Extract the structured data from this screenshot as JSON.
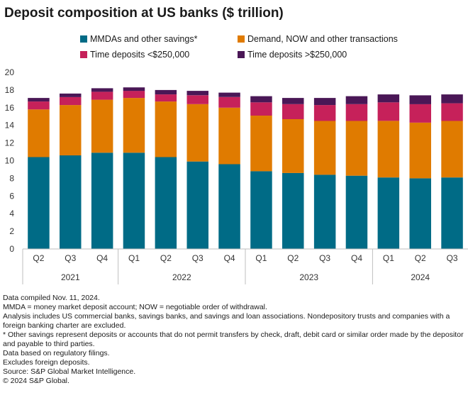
{
  "title": "Deposit composition at US banks ($ trillion)",
  "legend": [
    {
      "label": "MMDAs and other savings*",
      "color": "#006b86"
    },
    {
      "label": "Demand, NOW and other transactions",
      "color": "#e07b00"
    },
    {
      "label": "Time deposits <$250,000",
      "color": "#c6215a"
    },
    {
      "label": "Time deposits >$250,000",
      "color": "#4a1756"
    }
  ],
  "chart_data": {
    "type": "bar",
    "stacked": true,
    "title": "Deposit composition at US banks ($ trillion)",
    "categories": [
      "Q2",
      "Q3",
      "Q4",
      "Q1",
      "Q2",
      "Q3",
      "Q4",
      "Q1",
      "Q2",
      "Q3",
      "Q4",
      "Q1",
      "Q2",
      "Q3"
    ],
    "years": [
      {
        "label": "2021",
        "count": 3
      },
      {
        "label": "2022",
        "count": 4
      },
      {
        "label": "2023",
        "count": 4
      },
      {
        "label": "2024",
        "count": 3
      }
    ],
    "series": [
      {
        "name": "MMDAs and other savings*",
        "color": "#006b86",
        "values": [
          10.4,
          10.6,
          10.9,
          10.9,
          10.4,
          9.9,
          9.6,
          8.8,
          8.6,
          8.4,
          8.3,
          8.1,
          8.0,
          8.1
        ]
      },
      {
        "name": "Demand, NOW and other transactions",
        "color": "#e07b00",
        "values": [
          5.4,
          5.7,
          6.0,
          6.2,
          6.3,
          6.5,
          6.4,
          6.3,
          6.1,
          6.1,
          6.2,
          6.4,
          6.3,
          6.4
        ]
      },
      {
        "name": "Time deposits <$250,000",
        "color": "#c6215a",
        "values": [
          0.9,
          0.9,
          0.9,
          0.8,
          0.8,
          1.0,
          1.2,
          1.5,
          1.7,
          1.8,
          1.9,
          2.1,
          2.1,
          2.0
        ]
      },
      {
        "name": "Time deposits >$250,000",
        "color": "#4a1756",
        "values": [
          0.4,
          0.4,
          0.4,
          0.4,
          0.5,
          0.5,
          0.5,
          0.7,
          0.7,
          0.8,
          0.9,
          0.9,
          1.0,
          1.0
        ]
      }
    ],
    "ylim": [
      0,
      20
    ],
    "yticks": [
      0,
      2,
      4,
      6,
      8,
      10,
      12,
      14,
      16,
      18,
      20
    ],
    "xlabel": "",
    "ylabel": ""
  },
  "notes": [
    "Data compiled Nov. 11, 2024.",
    "MMDA = money market deposit account; NOW = negotiable order of withdrawal.",
    "Analysis includes US commercial banks, savings banks, and savings and loan associations. Nondepository trusts and companies with a foreign banking charter are excluded.",
    "* Other savings represent deposits or accounts that do not permit transfers by check, draft, debit card or similar order made by the depositor and payable to third parties.",
    "Data based on regulatory filings.",
    "Excludes foreign deposits.",
    "Source: S&P Global Market Intelligence.",
    "© 2024 S&P Global."
  ]
}
